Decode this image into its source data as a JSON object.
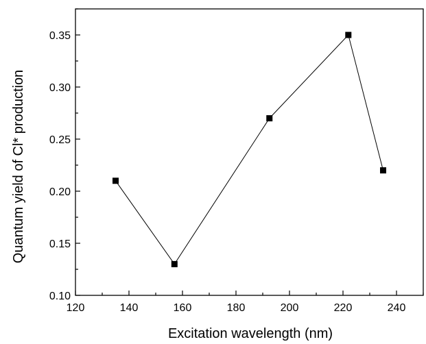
{
  "chart_data": {
    "type": "scatter",
    "title": "",
    "xlabel": "Excitation wavelength (nm)",
    "ylabel": "Quantum yield of Cl* production",
    "xlim": [
      120,
      250
    ],
    "ylim": [
      0.1,
      0.375
    ],
    "x_ticks": [
      "120",
      "140",
      "160",
      "180",
      "200",
      "220",
      "240"
    ],
    "y_ticks": [
      "0.10",
      "0.15",
      "0.20",
      "0.25",
      "0.30",
      "0.35"
    ],
    "grid": false,
    "legend": "none",
    "connected": true,
    "marker": "square",
    "colors": {
      "line": "#000000",
      "marker": "#000000"
    },
    "series": [
      {
        "x": [
          135,
          157,
          192.5,
          222,
          235
        ],
        "y": [
          0.21,
          0.13,
          0.27,
          0.35,
          0.22
        ]
      }
    ]
  }
}
